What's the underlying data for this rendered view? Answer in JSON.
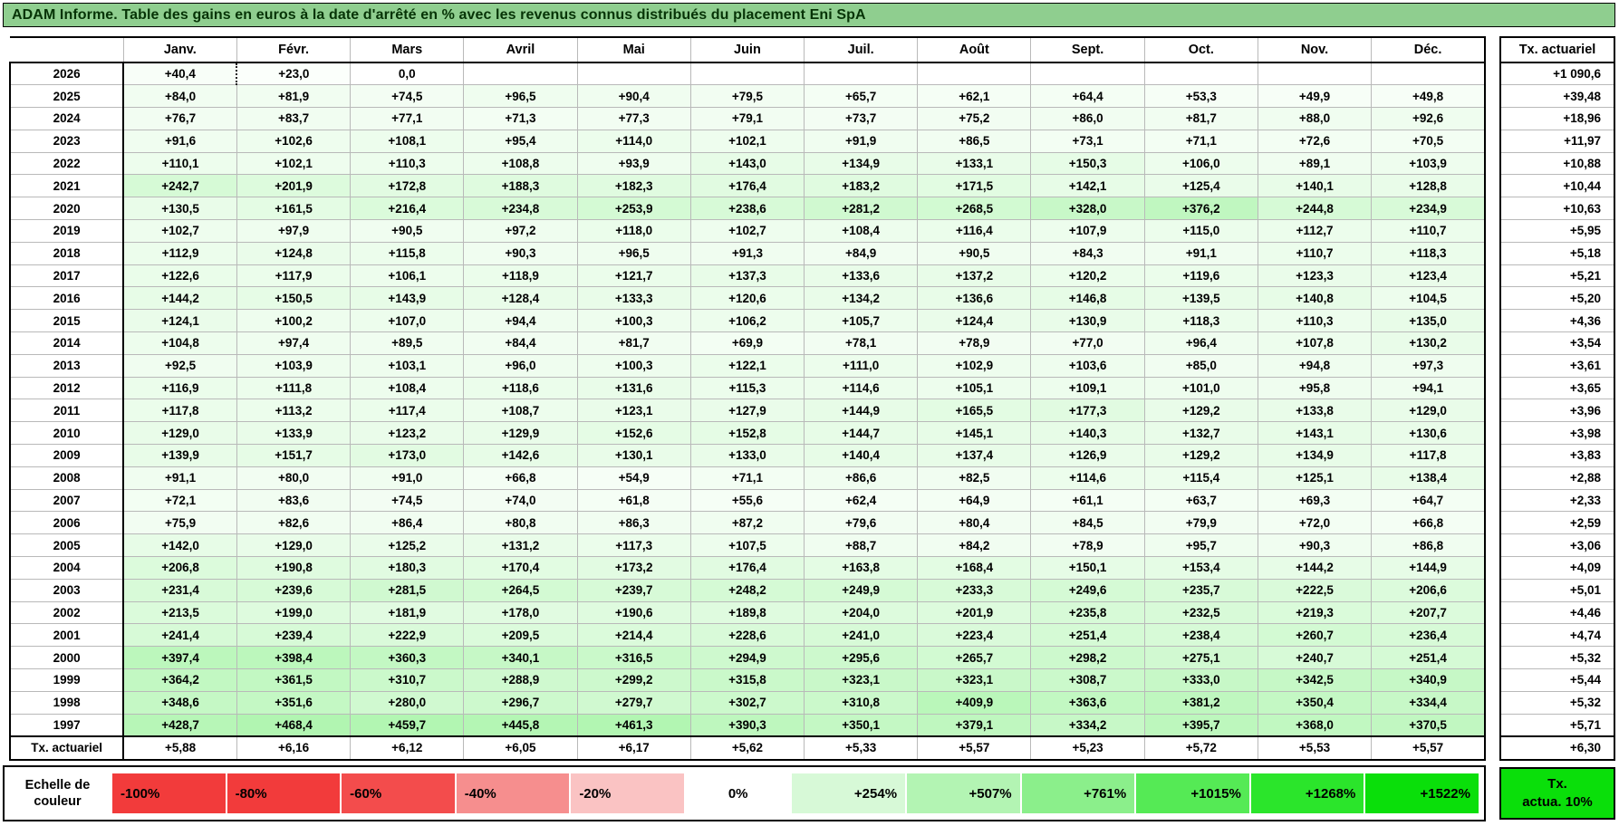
{
  "title": "ADAM Informe. Table des gains en euros à la date d'arrêté en % avec les revenus connus distribués du placement Eni SpA",
  "colors": {
    "title_bg": "#8FCE8F",
    "title_text": "#063306",
    "grid_line": "#b9b9b9",
    "border": "#000000",
    "positive_max_green": "#00E000",
    "scale_max_percent": 1522,
    "tx_box_green": "#0ADF0A"
  },
  "columns": [
    "Janv.",
    "Févr.",
    "Mars",
    "Avril",
    "Mai",
    "Juin",
    "Juil.",
    "Août",
    "Sept.",
    "Oct.",
    "Nov.",
    "Déc."
  ],
  "right_column_header": "Tx. actuariel",
  "rows": [
    {
      "year": "2026",
      "values": [
        "+40,4",
        "+23,0",
        "0,0",
        "",
        "",
        "",
        "",
        "",
        "",
        "",
        "",
        ""
      ],
      "tx": "+1 090,6"
    },
    {
      "year": "2025",
      "values": [
        "+84,0",
        "+81,9",
        "+74,5",
        "+96,5",
        "+90,4",
        "+79,5",
        "+65,7",
        "+62,1",
        "+64,4",
        "+53,3",
        "+49,9",
        "+49,8"
      ],
      "tx": "+39,48"
    },
    {
      "year": "2024",
      "values": [
        "+76,7",
        "+83,7",
        "+77,1",
        "+71,3",
        "+77,3",
        "+79,1",
        "+73,7",
        "+75,2",
        "+86,0",
        "+81,7",
        "+88,0",
        "+92,6"
      ],
      "tx": "+18,96"
    },
    {
      "year": "2023",
      "values": [
        "+91,6",
        "+102,6",
        "+108,1",
        "+95,4",
        "+114,0",
        "+102,1",
        "+91,9",
        "+86,5",
        "+73,1",
        "+71,1",
        "+72,6",
        "+70,5"
      ],
      "tx": "+11,97"
    },
    {
      "year": "2022",
      "values": [
        "+110,1",
        "+102,1",
        "+110,3",
        "+108,8",
        "+93,9",
        "+143,0",
        "+134,9",
        "+133,1",
        "+150,3",
        "+106,0",
        "+89,1",
        "+103,9"
      ],
      "tx": "+10,88"
    },
    {
      "year": "2021",
      "values": [
        "+242,7",
        "+201,9",
        "+172,8",
        "+188,3",
        "+182,3",
        "+176,4",
        "+183,2",
        "+171,5",
        "+142,1",
        "+125,4",
        "+140,1",
        "+128,8"
      ],
      "tx": "+10,44"
    },
    {
      "year": "2020",
      "values": [
        "+130,5",
        "+161,5",
        "+216,4",
        "+234,8",
        "+253,9",
        "+238,6",
        "+281,2",
        "+268,5",
        "+328,0",
        "+376,2",
        "+244,8",
        "+234,9"
      ],
      "tx": "+10,63"
    },
    {
      "year": "2019",
      "values": [
        "+102,7",
        "+97,9",
        "+90,5",
        "+97,2",
        "+118,0",
        "+102,7",
        "+108,4",
        "+116,4",
        "+107,9",
        "+115,0",
        "+112,7",
        "+110,7"
      ],
      "tx": "+5,95"
    },
    {
      "year": "2018",
      "values": [
        "+112,9",
        "+124,8",
        "+115,8",
        "+90,3",
        "+96,5",
        "+91,3",
        "+84,9",
        "+90,5",
        "+84,3",
        "+91,1",
        "+110,7",
        "+118,3"
      ],
      "tx": "+5,18"
    },
    {
      "year": "2017",
      "values": [
        "+122,6",
        "+117,9",
        "+106,1",
        "+118,9",
        "+121,7",
        "+137,3",
        "+133,6",
        "+137,2",
        "+120,2",
        "+119,6",
        "+123,3",
        "+123,4"
      ],
      "tx": "+5,21"
    },
    {
      "year": "2016",
      "values": [
        "+144,2",
        "+150,5",
        "+143,9",
        "+128,4",
        "+133,3",
        "+120,6",
        "+134,2",
        "+136,6",
        "+146,8",
        "+139,5",
        "+140,8",
        "+104,5"
      ],
      "tx": "+5,20"
    },
    {
      "year": "2015",
      "values": [
        "+124,1",
        "+100,2",
        "+107,0",
        "+94,4",
        "+100,3",
        "+106,2",
        "+105,7",
        "+124,4",
        "+130,9",
        "+118,3",
        "+110,3",
        "+135,0"
      ],
      "tx": "+4,36"
    },
    {
      "year": "2014",
      "values": [
        "+104,8",
        "+97,4",
        "+89,5",
        "+84,4",
        "+81,7",
        "+69,9",
        "+78,1",
        "+78,9",
        "+77,0",
        "+96,4",
        "+107,8",
        "+130,2"
      ],
      "tx": "+3,54"
    },
    {
      "year": "2013",
      "values": [
        "+92,5",
        "+103,9",
        "+103,1",
        "+96,0",
        "+100,3",
        "+122,1",
        "+111,0",
        "+102,9",
        "+103,6",
        "+85,0",
        "+94,8",
        "+97,3"
      ],
      "tx": "+3,61"
    },
    {
      "year": "2012",
      "values": [
        "+116,9",
        "+111,8",
        "+108,4",
        "+118,6",
        "+131,6",
        "+115,3",
        "+114,6",
        "+105,1",
        "+109,1",
        "+101,0",
        "+95,8",
        "+94,1"
      ],
      "tx": "+3,65"
    },
    {
      "year": "2011",
      "values": [
        "+117,8",
        "+113,2",
        "+117,4",
        "+108,7",
        "+123,1",
        "+127,9",
        "+144,9",
        "+165,5",
        "+177,3",
        "+129,2",
        "+133,8",
        "+129,0"
      ],
      "tx": "+3,96"
    },
    {
      "year": "2010",
      "values": [
        "+129,0",
        "+133,9",
        "+123,2",
        "+129,9",
        "+152,6",
        "+152,8",
        "+144,7",
        "+145,1",
        "+140,3",
        "+132,7",
        "+143,1",
        "+130,6"
      ],
      "tx": "+3,98"
    },
    {
      "year": "2009",
      "values": [
        "+139,9",
        "+151,7",
        "+173,0",
        "+142,6",
        "+130,1",
        "+133,0",
        "+140,4",
        "+137,4",
        "+126,9",
        "+129,2",
        "+134,9",
        "+117,8"
      ],
      "tx": "+3,83"
    },
    {
      "year": "2008",
      "values": [
        "+91,1",
        "+80,0",
        "+91,0",
        "+66,8",
        "+54,9",
        "+71,1",
        "+86,6",
        "+82,5",
        "+114,6",
        "+115,4",
        "+125,1",
        "+138,4"
      ],
      "tx": "+2,88"
    },
    {
      "year": "2007",
      "values": [
        "+72,1",
        "+83,6",
        "+74,5",
        "+74,0",
        "+61,8",
        "+55,6",
        "+62,4",
        "+64,9",
        "+61,1",
        "+63,7",
        "+69,3",
        "+64,7"
      ],
      "tx": "+2,33"
    },
    {
      "year": "2006",
      "values": [
        "+75,9",
        "+82,6",
        "+86,4",
        "+80,8",
        "+86,3",
        "+87,2",
        "+79,6",
        "+80,4",
        "+84,5",
        "+79,9",
        "+72,0",
        "+66,8"
      ],
      "tx": "+2,59"
    },
    {
      "year": "2005",
      "values": [
        "+142,0",
        "+129,0",
        "+125,2",
        "+131,2",
        "+117,3",
        "+107,5",
        "+88,7",
        "+84,2",
        "+78,9",
        "+95,7",
        "+90,3",
        "+86,8"
      ],
      "tx": "+3,06"
    },
    {
      "year": "2004",
      "values": [
        "+206,8",
        "+190,8",
        "+180,3",
        "+170,4",
        "+173,2",
        "+176,4",
        "+163,8",
        "+168,4",
        "+150,1",
        "+153,4",
        "+144,2",
        "+144,9"
      ],
      "tx": "+4,09"
    },
    {
      "year": "2003",
      "values": [
        "+231,4",
        "+239,6",
        "+281,5",
        "+264,5",
        "+239,7",
        "+248,2",
        "+249,9",
        "+233,3",
        "+249,6",
        "+235,7",
        "+222,5",
        "+206,6"
      ],
      "tx": "+5,01"
    },
    {
      "year": "2002",
      "values": [
        "+213,5",
        "+199,0",
        "+181,9",
        "+178,0",
        "+190,6",
        "+189,8",
        "+204,0",
        "+201,9",
        "+235,8",
        "+232,5",
        "+219,3",
        "+207,7"
      ],
      "tx": "+4,46"
    },
    {
      "year": "2001",
      "values": [
        "+241,4",
        "+239,4",
        "+222,9",
        "+209,5",
        "+214,4",
        "+228,6",
        "+241,0",
        "+223,4",
        "+251,4",
        "+238,4",
        "+260,7",
        "+236,4"
      ],
      "tx": "+4,74"
    },
    {
      "year": "2000",
      "values": [
        "+397,4",
        "+398,4",
        "+360,3",
        "+340,1",
        "+316,5",
        "+294,9",
        "+295,6",
        "+265,7",
        "+298,2",
        "+275,1",
        "+240,7",
        "+251,4"
      ],
      "tx": "+5,32"
    },
    {
      "year": "1999",
      "values": [
        "+364,2",
        "+361,5",
        "+310,7",
        "+288,9",
        "+299,2",
        "+315,8",
        "+323,1",
        "+323,1",
        "+308,7",
        "+333,0",
        "+342,5",
        "+340,9"
      ],
      "tx": "+5,44"
    },
    {
      "year": "1998",
      "values": [
        "+348,6",
        "+351,6",
        "+280,0",
        "+296,7",
        "+279,7",
        "+302,7",
        "+310,8",
        "+409,9",
        "+363,6",
        "+381,2",
        "+350,4",
        "+334,4"
      ],
      "tx": "+5,32"
    },
    {
      "year": "1997",
      "values": [
        "+428,7",
        "+468,4",
        "+459,7",
        "+445,8",
        "+461,3",
        "+390,3",
        "+350,1",
        "+379,1",
        "+334,2",
        "+395,7",
        "+368,0",
        "+370,5"
      ],
      "tx": "+5,71"
    }
  ],
  "footer": {
    "label": "Tx. actuariel",
    "values": [
      "+5,88",
      "+6,16",
      "+6,12",
      "+6,05",
      "+6,17",
      "+5,62",
      "+5,33",
      "+5,57",
      "+5,23",
      "+5,72",
      "+5,53",
      "+5,57"
    ],
    "tx": "+6,30"
  },
  "marching_cell": {
    "year": "2026",
    "col": 0
  },
  "legend": {
    "label_line1": "Echelle de",
    "label_line2": "couleur",
    "stops": [
      {
        "label": "-100%",
        "color": "#F23B3B",
        "align": "left"
      },
      {
        "label": "-80%",
        "color": "#F23B3B",
        "align": "left"
      },
      {
        "label": "-60%",
        "color": "#F34C4C",
        "align": "left"
      },
      {
        "label": "-40%",
        "color": "#F68E8E",
        "align": "left"
      },
      {
        "label": "-20%",
        "color": "#FAC3C3",
        "align": "left"
      },
      {
        "label": "0%",
        "color": "#FFFFFF",
        "align": "center"
      },
      {
        "label": "+254%",
        "color": "#D7F9D7",
        "align": "right"
      },
      {
        "label": "+507%",
        "color": "#B3F4B3",
        "align": "right"
      },
      {
        "label": "+761%",
        "color": "#8BEF8B",
        "align": "right"
      },
      {
        "label": "+1015%",
        "color": "#55EA55",
        "align": "right"
      },
      {
        "label": "+1268%",
        "color": "#2BE52B",
        "align": "right"
      },
      {
        "label": "+1522%",
        "color": "#0ADF0A",
        "align": "right"
      }
    ],
    "tx_box": {
      "line1": "Tx.",
      "line2": "actua. 10%"
    }
  }
}
